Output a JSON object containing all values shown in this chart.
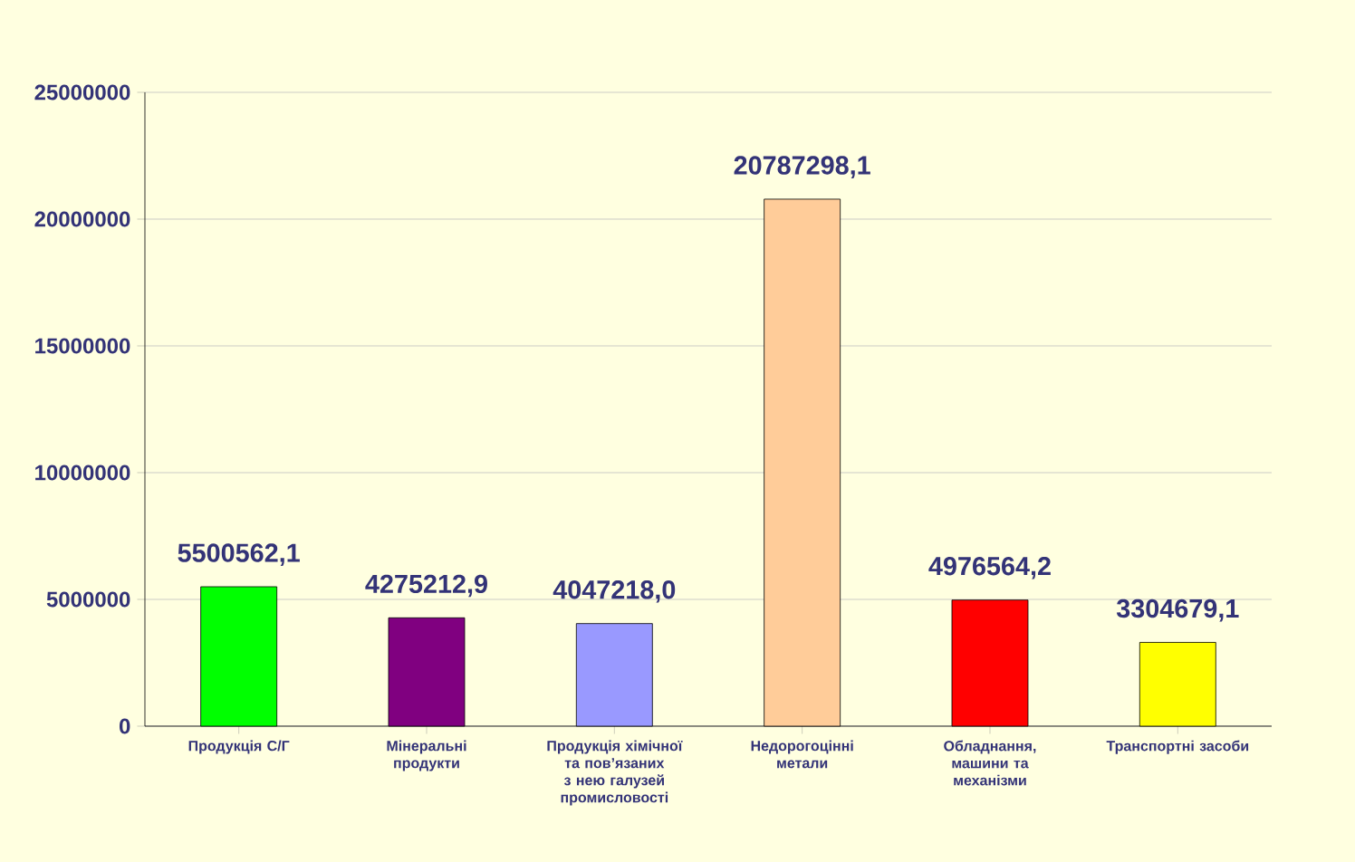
{
  "chart_data": {
    "type": "bar",
    "categories": [
      "Продукція С/Г",
      "Мінеральні продукти",
      "Продукція хімічної та пов’язаних з нею галузей промисловості",
      "Недорогоцінні метали",
      "Обладнання, машини та механізми",
      "Транспортні засоби"
    ],
    "values": [
      5500562.1,
      4275212.9,
      4047218.0,
      20787298.1,
      4976564.2,
      3304679.1
    ],
    "value_labels": [
      "5500562,1",
      "4275212,9",
      "4047218,0",
      "20787298,1",
      "4976564,2",
      "3304679,1"
    ],
    "colors": [
      "#00ff00",
      "#800080",
      "#9999ff",
      "#ffcc99",
      "#ff0000",
      "#ffff00"
    ],
    "ylim": [
      0,
      25000000
    ],
    "yticks": [
      0,
      5000000,
      10000000,
      15000000,
      20000000,
      25000000
    ],
    "grid": "y"
  }
}
